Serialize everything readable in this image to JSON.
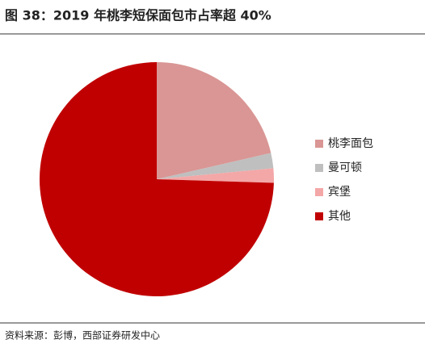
{
  "chart_data": {
    "type": "pie",
    "title": "图 38：2019 年桃李短保面包市占率超 40%",
    "source": "资料来源：彭博，西部证券研发中心",
    "categories": [
      "桃李面包",
      "曼可顿",
      "宾堡",
      "其他"
    ],
    "values": [
      21.4,
      2.1,
      2,
      74.5
    ],
    "colors": [
      "#d99694",
      "#bfbfbf",
      "#f4a7a7",
      "#c00000"
    ],
    "legend": "right"
  }
}
